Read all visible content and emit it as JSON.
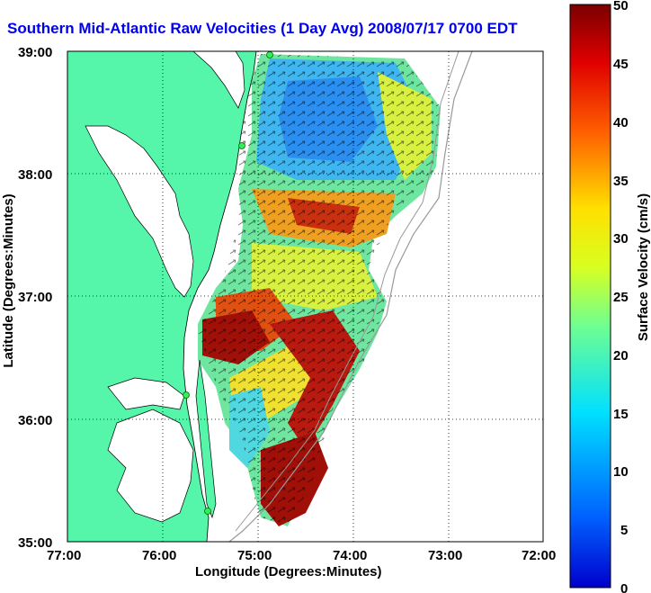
{
  "title": "Southern Mid-Atlantic Raw Velocities (1 Day Avg) 2008/07/17 0700 EDT",
  "map": {
    "xlabel": "Longitude (Degrees:Minutes)",
    "ylabel": "Latitude (Degrees:Minutes)",
    "lon_ticks": [
      "77:00",
      "76:00",
      "75:00",
      "74:00",
      "73:00",
      "72:00"
    ],
    "lat_ticks": [
      "39:00",
      "38:00",
      "37:00",
      "36:00",
      "35:00"
    ],
    "land_color": "#55f5aa",
    "gridlines": "dotted"
  },
  "colorbar": {
    "label": "Surface Velocity (cm/s)",
    "ticks": [
      "50",
      "45",
      "40",
      "35",
      "30",
      "25",
      "20",
      "15",
      "10",
      "5",
      "0"
    ],
    "range": [
      0,
      50
    ],
    "colormap": "jet"
  }
}
